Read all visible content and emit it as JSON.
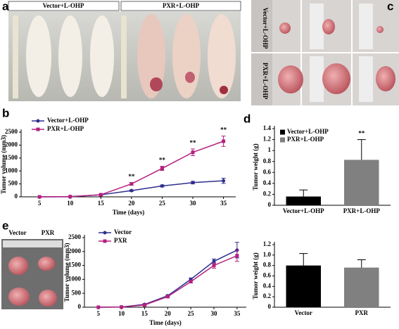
{
  "panel_labels": [
    "a",
    "b",
    "c",
    "d",
    "e"
  ],
  "photos": {
    "a": [
      "Vector+L-OHP",
      "PXR+L-OHP"
    ],
    "c": [
      "Vector+L-OHP",
      "PXR+L-OHP"
    ],
    "e": [
      "Vector",
      "PXR"
    ]
  },
  "chart_data": [
    {
      "type": "line",
      "x_label": "Time (days)",
      "y_label": "Tumor  volume (mm3)",
      "x": [
        5,
        10,
        15,
        20,
        25,
        30,
        35
      ],
      "xlim": [
        2,
        37
      ],
      "xticks": [
        5,
        10,
        15,
        20,
        25,
        30,
        35
      ],
      "ylim": [
        0,
        2500
      ],
      "yticks": [
        0,
        500,
        1000,
        1500,
        2000,
        2500
      ],
      "series": [
        {
          "name": "Vector+L-OHP",
          "color": "#2e2e8f",
          "values": [
            0,
            5,
            80,
            240,
            420,
            550,
            620
          ],
          "errors": [
            0,
            0,
            20,
            30,
            40,
            50,
            100
          ]
        },
        {
          "name": "PXR+L-OHP",
          "color": "#b3217f",
          "values": [
            0,
            10,
            80,
            500,
            1100,
            1720,
            2150
          ],
          "errors": [
            0,
            0,
            20,
            50,
            80,
            130,
            200
          ]
        }
      ],
      "annotations": [
        {
          "text": "**",
          "x": 20
        },
        {
          "text": "**",
          "x": 25
        },
        {
          "text": "**",
          "x": 30
        },
        {
          "text": "**",
          "x": 35
        }
      ],
      "legend": "upper left"
    },
    {
      "type": "bar",
      "y_label": "Tumor  weight (g)",
      "categories": [
        "Vector+L-OHP",
        "PXR+L-OHP"
      ],
      "values": [
        0.16,
        0.83
      ],
      "errors": [
        0.12,
        0.37
      ],
      "colors": [
        "#000000",
        "#808080"
      ],
      "ylim": [
        0,
        1.4
      ],
      "yticks": [
        0,
        0.2,
        0.4,
        0.6,
        0.8,
        1,
        1.2,
        1.4
      ],
      "annotations": [
        {
          "text": "**",
          "x": "PXR+L-OHP"
        }
      ],
      "legend": "upper left"
    },
    {
      "type": "line",
      "x_label": "Time (days)",
      "y_label": "Tumor volume (mm3)",
      "x": [
        5,
        10,
        15,
        20,
        25,
        30,
        35
      ],
      "xlim": [
        2,
        37
      ],
      "xticks": [
        5,
        10,
        15,
        20,
        25,
        30,
        35
      ],
      "ylim": [
        0,
        2500
      ],
      "yticks": [
        0,
        500,
        1000,
        1500,
        2000,
        2500
      ],
      "series": [
        {
          "name": "Vector",
          "color": "#2e2e8f",
          "values": [
            0,
            5,
            100,
            410,
            1000,
            1650,
            2050
          ],
          "errors": [
            0,
            0,
            20,
            30,
            50,
            80,
            280
          ]
        },
        {
          "name": "PXR",
          "color": "#b3217f",
          "values": [
            0,
            5,
            80,
            380,
            920,
            1500,
            1850
          ],
          "errors": [
            0,
            0,
            20,
            30,
            50,
            100,
            200
          ]
        }
      ],
      "legend": "upper left"
    },
    {
      "type": "bar",
      "y_label": "Tumor  weight (g)",
      "categories": [
        "Vector",
        "PXR"
      ],
      "values": [
        0.8,
        0.76
      ],
      "errors": [
        0.23,
        0.15
      ],
      "colors": [
        "#000000",
        "#808080"
      ],
      "ylim": [
        0,
        1.2
      ],
      "yticks": [
        0,
        0.2,
        0.4,
        0.6,
        0.8,
        {
          "value": 1,
          "label": "1.0"
        },
        1.2
      ]
    }
  ]
}
